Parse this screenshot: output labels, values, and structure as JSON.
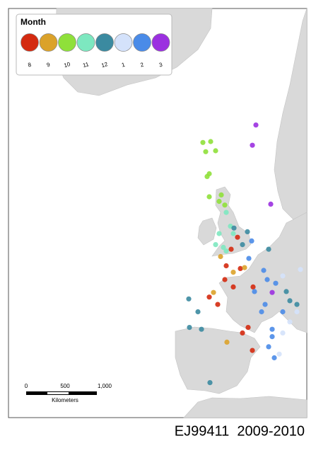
{
  "legend": {
    "title": "Month",
    "months": [
      8,
      9,
      10,
      11,
      12,
      1,
      2,
      3
    ],
    "colors": [
      "#d42a10",
      "#dba22a",
      "#8fe03a",
      "#7de8c0",
      "#3b8aa0",
      "#d4e2fb",
      "#4a8be8",
      "#9b30e0"
    ]
  },
  "observations": [
    {
      "lon": 1.7,
      "lat": 65.3,
      "month": 3
    },
    {
      "lon": 1.2,
      "lat": 63.1,
      "month": 3
    },
    {
      "lon": 3.8,
      "lat": 56.7,
      "month": 3
    },
    {
      "lon": 4.0,
      "lat": 47.1,
      "month": 3
    },
    {
      "lon": -5.8,
      "lat": 63.4,
      "month": 10
    },
    {
      "lon": -4.7,
      "lat": 63.5,
      "month": 10
    },
    {
      "lon": -5.4,
      "lat": 62.4,
      "month": 10
    },
    {
      "lon": -4,
      "lat": 62.5,
      "month": 10
    },
    {
      "lon": -4.9,
      "lat": 60,
      "month": 10
    },
    {
      "lon": -5.2,
      "lat": 59.7,
      "month": 10
    },
    {
      "lon": -4.9,
      "lat": 57.5,
      "month": 10
    },
    {
      "lon": -3.5,
      "lat": 57,
      "month": 10
    },
    {
      "lon": -2.7,
      "lat": 56.6,
      "month": 10
    },
    {
      "lon": -3.2,
      "lat": 57.7,
      "month": 10
    },
    {
      "lon": -2.5,
      "lat": 55.8,
      "month": 11
    },
    {
      "lon": -1.9,
      "lat": 54.3,
      "month": 11
    },
    {
      "lon": -3.5,
      "lat": 53.5,
      "month": 11
    },
    {
      "lon": -2.9,
      "lat": 52,
      "month": 11
    },
    {
      "lon": -1.5,
      "lat": 53.5,
      "month": 11
    },
    {
      "lon": -2.5,
      "lat": 51.6,
      "month": 11
    },
    {
      "lon": -4,
      "lat": 52.3,
      "month": 11
    },
    {
      "lon": -1.8,
      "lat": 51.8,
      "month": 8
    },
    {
      "lon": -2.5,
      "lat": 50,
      "month": 8
    },
    {
      "lon": -0.5,
      "lat": 49.7,
      "month": 8
    },
    {
      "lon": -2.7,
      "lat": 48.5,
      "month": 8
    },
    {
      "lon": -1.5,
      "lat": 47.7,
      "month": 8
    },
    {
      "lon": -4.9,
      "lat": 46.6,
      "month": 8
    },
    {
      "lon": -3.7,
      "lat": 45.8,
      "month": 8
    },
    {
      "lon": -0.2,
      "lat": 42.7,
      "month": 8
    },
    {
      "lon": 0.6,
      "lat": 43.3,
      "month": 8
    },
    {
      "lon": 1.2,
      "lat": 40.8,
      "month": 8
    },
    {
      "lon": -0.9,
      "lat": 53.1,
      "month": 8
    },
    {
      "lon": 1.3,
      "lat": 47.7,
      "month": 8
    },
    {
      "lon": -1.5,
      "lat": 49.3,
      "month": 9
    },
    {
      "lon": -4.3,
      "lat": 47.1,
      "month": 9
    },
    {
      "lon": -2.4,
      "lat": 41.7,
      "month": 9
    },
    {
      "lon": 0.1,
      "lat": 49.8,
      "month": 9
    },
    {
      "lon": -3.3,
      "lat": 51,
      "month": 9
    },
    {
      "lon": -1.4,
      "lat": 54.1,
      "month": 12
    },
    {
      "lon": 0.5,
      "lat": 53.7,
      "month": 12
    },
    {
      "lon": -0.2,
      "lat": 52.3,
      "month": 12
    },
    {
      "lon": 3.5,
      "lat": 51.8,
      "month": 12
    },
    {
      "lon": -7.8,
      "lat": 46.4,
      "month": 12
    },
    {
      "lon": -6.5,
      "lat": 45,
      "month": 12
    },
    {
      "lon": -6,
      "lat": 43.1,
      "month": 12
    },
    {
      "lon": -7.7,
      "lat": 43.3,
      "month": 12
    },
    {
      "lon": -4.8,
      "lat": 37.3,
      "month": 12
    },
    {
      "lon": 6,
      "lat": 47.2,
      "month": 12
    },
    {
      "lon": 7.5,
      "lat": 45.8,
      "month": 12
    },
    {
      "lon": 6.5,
      "lat": 46.2,
      "month": 12
    },
    {
      "lon": 8,
      "lat": 49.6,
      "month": 1
    },
    {
      "lon": 5.5,
      "lat": 48.9,
      "month": 1
    },
    {
      "lon": 7.5,
      "lat": 45,
      "month": 1
    },
    {
      "lon": 5.5,
      "lat": 42.7,
      "month": 1
    },
    {
      "lon": 6.5,
      "lat": 43.9,
      "month": 1
    },
    {
      "lon": 5,
      "lat": 40.4,
      "month": 1
    },
    {
      "lon": 2.8,
      "lat": 49.5,
      "month": 2
    },
    {
      "lon": 3.3,
      "lat": 48.5,
      "month": 2
    },
    {
      "lon": 1.5,
      "lat": 47.2,
      "month": 2
    },
    {
      "lon": 3,
      "lat": 45.8,
      "month": 2
    },
    {
      "lon": 4.5,
      "lat": 48.1,
      "month": 2
    },
    {
      "lon": 2.5,
      "lat": 45,
      "month": 2
    },
    {
      "lon": 4,
      "lat": 43.1,
      "month": 2
    },
    {
      "lon": 3.5,
      "lat": 41.2,
      "month": 2
    },
    {
      "lon": 4.3,
      "lat": 40,
      "month": 2
    },
    {
      "lon": 4,
      "lat": 42.3,
      "month": 2
    },
    {
      "lon": 5.5,
      "lat": 45,
      "month": 2
    },
    {
      "lon": 0.7,
      "lat": 50.8,
      "month": 2
    },
    {
      "lon": 1.1,
      "lat": 52.7,
      "month": 2
    }
  ],
  "scale_bar": {
    "labels": [
      "0",
      "500",
      "1,000"
    ],
    "unit": "Kilometers"
  },
  "caption": "EJ99411  2009-2010"
}
